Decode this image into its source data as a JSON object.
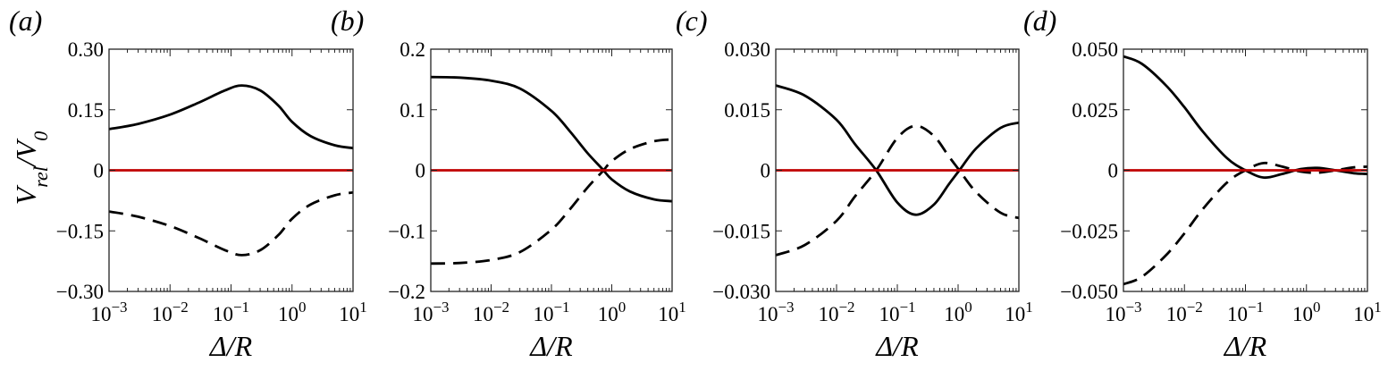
{
  "ylabel": {
    "main": "V",
    "sub1": "rel",
    "slash": "/",
    "main2": "V",
    "sub2": "0"
  },
  "xlabel": "Δ/R",
  "chart_data": [
    {
      "panel": "(a)",
      "type": "line",
      "xscale": "log",
      "xlim": [
        0.001,
        10
      ],
      "ylim": [
        -0.3,
        0.3
      ],
      "yticks": [
        "0.30",
        "0.15",
        "0",
        "−0.15",
        "−0.30"
      ],
      "ytick_values": [
        0.3,
        0.15,
        0,
        -0.15,
        -0.3
      ],
      "series": [
        {
          "style": "solid",
          "color": "#000000",
          "x": [
            0.001,
            0.003,
            0.01,
            0.03,
            0.08,
            0.15,
            0.3,
            0.6,
            1,
            2,
            5,
            10
          ],
          "y": [
            0.102,
            0.115,
            0.138,
            0.168,
            0.198,
            0.21,
            0.198,
            0.16,
            0.12,
            0.085,
            0.062,
            0.055
          ]
        },
        {
          "style": "dashed",
          "color": "#000000",
          "x": [
            0.001,
            0.003,
            0.01,
            0.03,
            0.08,
            0.15,
            0.3,
            0.6,
            1,
            2,
            5,
            10
          ],
          "y": [
            -0.102,
            -0.115,
            -0.138,
            -0.168,
            -0.198,
            -0.21,
            -0.198,
            -0.16,
            -0.12,
            -0.085,
            -0.062,
            -0.055
          ]
        },
        {
          "style": "solid",
          "color": "#c00000",
          "x": [
            0.001,
            10
          ],
          "y": [
            0,
            0
          ]
        }
      ]
    },
    {
      "panel": "(b)",
      "type": "line",
      "xscale": "log",
      "xlim": [
        0.001,
        10
      ],
      "ylim": [
        -0.2,
        0.2
      ],
      "yticks": [
        "0.2",
        "0.1",
        "0",
        "−0.1",
        "−0.2"
      ],
      "ytick_values": [
        0.2,
        0.1,
        0,
        -0.1,
        -0.2
      ],
      "series": [
        {
          "style": "solid",
          "color": "#000000",
          "x": [
            0.001,
            0.003,
            0.01,
            0.03,
            0.1,
            0.2,
            0.4,
            0.7,
            1,
            2,
            5,
            10
          ],
          "y": [
            0.154,
            0.153,
            0.148,
            0.135,
            0.098,
            0.065,
            0.028,
            0.002,
            -0.015,
            -0.035,
            -0.048,
            -0.051
          ]
        },
        {
          "style": "dashed",
          "color": "#000000",
          "x": [
            0.001,
            0.003,
            0.01,
            0.03,
            0.1,
            0.2,
            0.4,
            0.7,
            1,
            2,
            5,
            10
          ],
          "y": [
            -0.154,
            -0.153,
            -0.148,
            -0.135,
            -0.098,
            -0.065,
            -0.028,
            -0.002,
            0.015,
            0.035,
            0.048,
            0.051
          ]
        },
        {
          "style": "solid",
          "color": "#c00000",
          "x": [
            0.001,
            10
          ],
          "y": [
            0,
            0
          ]
        }
      ]
    },
    {
      "panel": "(c)",
      "type": "line",
      "xscale": "log",
      "xlim": [
        0.001,
        10
      ],
      "ylim": [
        -0.03,
        0.03
      ],
      "yticks": [
        "0.030",
        "0.015",
        "0",
        "−0.015",
        "−0.030"
      ],
      "ytick_values": [
        0.03,
        0.015,
        0,
        -0.015,
        -0.03
      ],
      "series": [
        {
          "style": "solid",
          "color": "#000000",
          "x": [
            0.001,
            0.003,
            0.01,
            0.02,
            0.045,
            0.1,
            0.2,
            0.4,
            0.7,
            1.05,
            2,
            5,
            10
          ],
          "y": [
            0.021,
            0.0185,
            0.0125,
            0.0065,
            0.0,
            -0.008,
            -0.011,
            -0.0085,
            -0.0035,
            0.0,
            0.0055,
            0.0105,
            0.0118
          ]
        },
        {
          "style": "dashed",
          "color": "#000000",
          "x": [
            0.001,
            0.003,
            0.01,
            0.02,
            0.045,
            0.1,
            0.2,
            0.4,
            0.7,
            1.05,
            2,
            5,
            10
          ],
          "y": [
            -0.021,
            -0.0185,
            -0.0125,
            -0.0065,
            0.0,
            0.008,
            0.011,
            0.0085,
            0.0035,
            0.0,
            -0.0055,
            -0.0105,
            -0.0118
          ]
        },
        {
          "style": "solid",
          "color": "#c00000",
          "x": [
            0.001,
            10
          ],
          "y": [
            0,
            0
          ]
        }
      ]
    },
    {
      "panel": "(d)",
      "type": "line",
      "xscale": "log",
      "xlim": [
        0.001,
        10
      ],
      "ylim": [
        -0.05,
        0.05
      ],
      "yticks": [
        "0.050",
        "0.025",
        "0",
        "−0.025",
        "−0.050"
      ],
      "ytick_values": [
        0.05,
        0.025,
        0,
        -0.025,
        -0.05
      ],
      "series": [
        {
          "style": "solid",
          "color": "#000000",
          "x": [
            0.001,
            0.002,
            0.005,
            0.01,
            0.02,
            0.05,
            0.1,
            0.2,
            0.4,
            0.8,
            1.5,
            3,
            6,
            10
          ],
          "y": [
            0.047,
            0.044,
            0.035,
            0.026,
            0.016,
            0.005,
            0.0,
            -0.003,
            -0.0015,
            0.0005,
            0.001,
            0.0,
            -0.0012,
            -0.0015
          ]
        },
        {
          "style": "dashed",
          "color": "#000000",
          "x": [
            0.001,
            0.002,
            0.005,
            0.01,
            0.02,
            0.05,
            0.1,
            0.2,
            0.4,
            0.8,
            1.5,
            3,
            6,
            10
          ],
          "y": [
            -0.047,
            -0.044,
            -0.035,
            -0.026,
            -0.016,
            -0.005,
            0.0,
            0.003,
            0.0015,
            -0.0005,
            -0.001,
            0.0,
            0.0012,
            0.0015
          ]
        },
        {
          "style": "solid",
          "color": "#c00000",
          "x": [
            0.001,
            10
          ],
          "y": [
            0,
            0
          ]
        }
      ]
    }
  ]
}
